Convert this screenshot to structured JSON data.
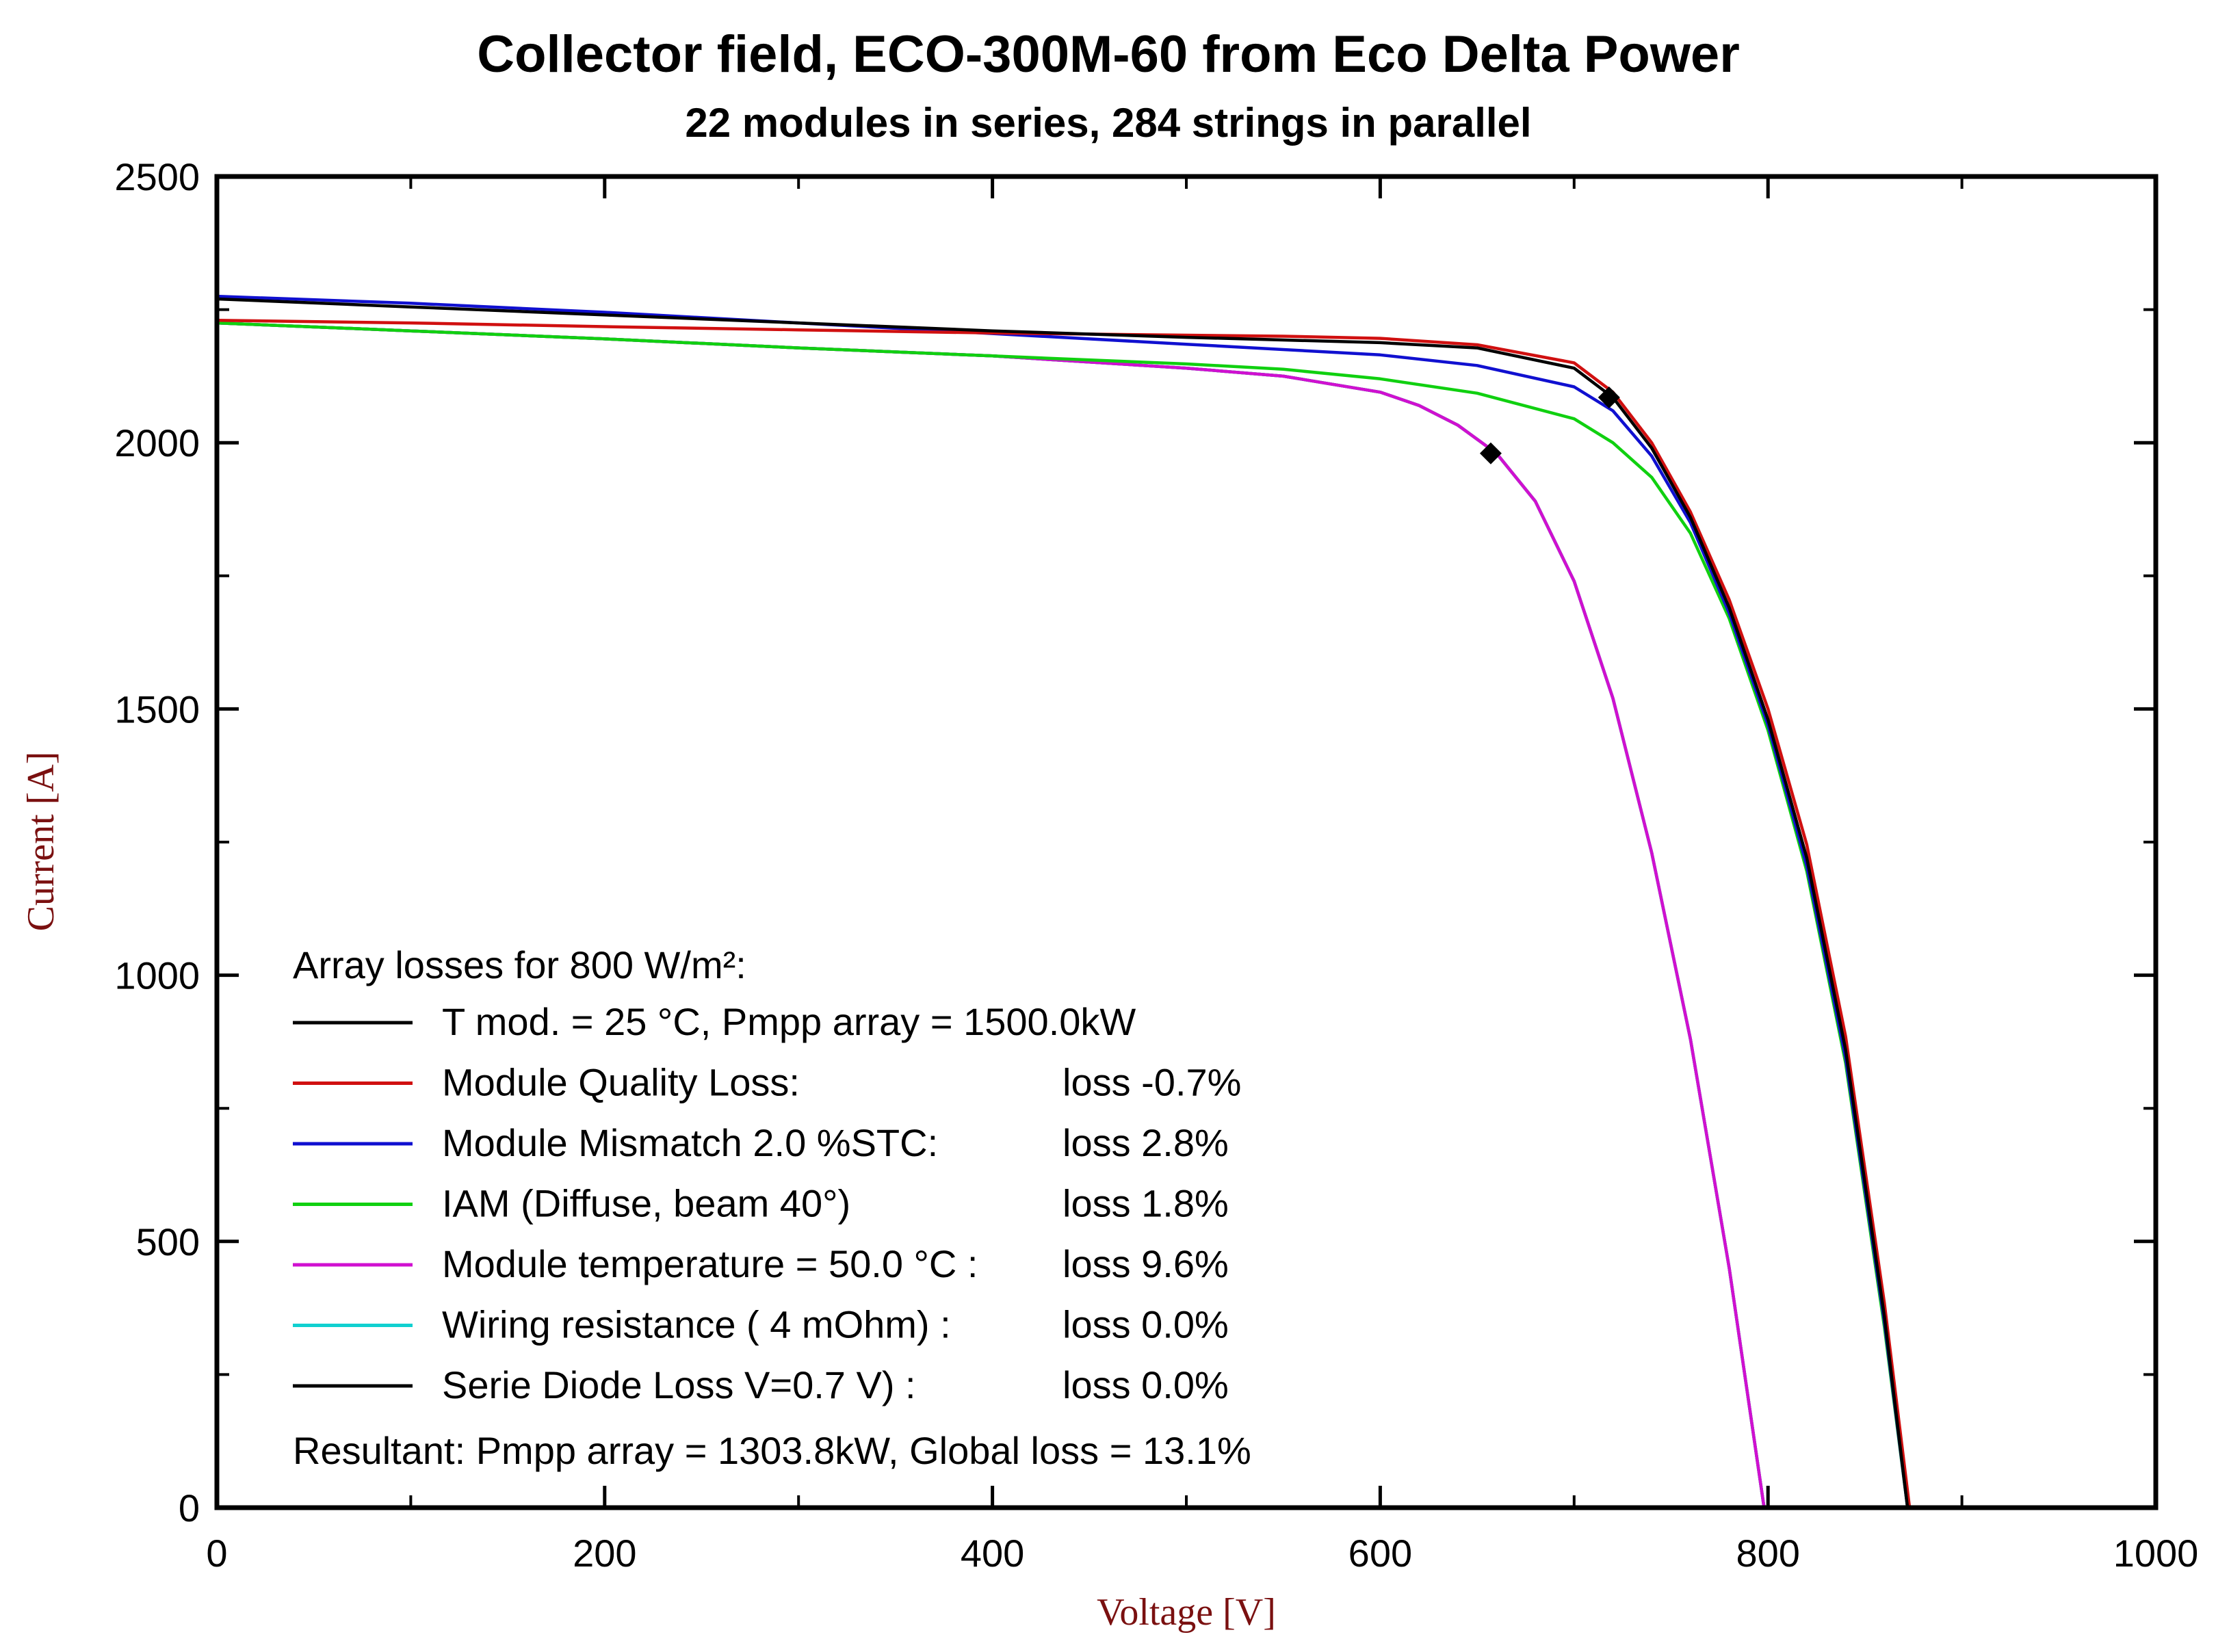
{
  "chart_data": {
    "type": "line",
    "title": "Collector field, ECO-300M-60 from Eco Delta Power",
    "subtitle": "22 modules in series, 284 strings in parallel",
    "xlabel": "Voltage [V]",
    "ylabel": "Current [A]",
    "xlim": [
      0,
      1000
    ],
    "ylim": [
      0,
      2500
    ],
    "xticks": [
      "0",
      "200",
      "400",
      "600",
      "800",
      "1000"
    ],
    "yticks": [
      "0",
      "500",
      "1000",
      "1500",
      "2000",
      "2500"
    ],
    "grid": false,
    "legend": {
      "title": "Array losses for  800 W/m²:",
      "placement": "bottom-left",
      "entries": [
        {
          "label": "T mod. = 25 °C,   Pmpp array = 1500.0kW",
          "loss": "",
          "color": "#000000"
        },
        {
          "label": "Module Quality Loss:",
          "loss": "loss -0.7%",
          "color": "#d01010"
        },
        {
          "label": "Module Mismatch 2.0 %STC:",
          "loss": "loss 2.8%",
          "color": "#1010d0"
        },
        {
          "label": "IAM (Diffuse, beam 40°)",
          "loss": "loss 1.8%",
          "color": "#10d010"
        },
        {
          "label": "Module temperature = 50.0 °C :",
          "loss": "loss 9.6%",
          "color": "#d010d0"
        },
        {
          "label": "Wiring resistance  (   4 mOhm) :",
          "loss": "loss 0.0%",
          "color": "#10d0d0"
        },
        {
          "label": "Serie Diode Loss V=0.7 V) :",
          "loss": "loss 0.0%",
          "color": "#000000"
        }
      ],
      "resultant": "Resultant: Pmpp array = 1303.8kW, Global loss = 13.1%"
    },
    "series": [
      {
        "name": "T mod. = 25 °C",
        "color": "#000000",
        "x": [
          0,
          100,
          200,
          300,
          400,
          500,
          550,
          600,
          650,
          700,
          720,
          740,
          760,
          780,
          800,
          820,
          840,
          860,
          872
        ],
        "y": [
          2270,
          2255,
          2240,
          2225,
          2210,
          2198,
          2193,
          2188,
          2178,
          2140,
          2085,
          1990,
          1860,
          1690,
          1480,
          1220,
          860,
          360,
          0
        ]
      },
      {
        "name": "Module Quality Loss",
        "color": "#d01010",
        "x": [
          0,
          100,
          200,
          300,
          400,
          500,
          550,
          600,
          650,
          700,
          720,
          740,
          760,
          780,
          800,
          820,
          840,
          860,
          873
        ],
        "y": [
          2230,
          2225,
          2218,
          2212,
          2206,
          2202,
          2200,
          2196,
          2184,
          2150,
          2095,
          2000,
          1870,
          1705,
          1500,
          1245,
          885,
          385,
          0
        ]
      },
      {
        "name": "Module Mismatch 2.0 %STC",
        "color": "#1010d0",
        "x": [
          0,
          100,
          200,
          300,
          400,
          500,
          550,
          600,
          650,
          700,
          720,
          740,
          760,
          780,
          800,
          820,
          840,
          860,
          872
        ],
        "y": [
          2275,
          2262,
          2245,
          2225,
          2205,
          2185,
          2175,
          2165,
          2145,
          2105,
          2060,
          1975,
          1850,
          1680,
          1470,
          1205,
          845,
          350,
          0
        ]
      },
      {
        "name": "IAM (Diffuse, beam 40°)",
        "color": "#10d010",
        "x": [
          0,
          100,
          200,
          300,
          400,
          500,
          550,
          600,
          650,
          700,
          720,
          740,
          760,
          780,
          800,
          820,
          840,
          860,
          872
        ],
        "y": [
          2225,
          2210,
          2195,
          2178,
          2163,
          2148,
          2138,
          2120,
          2093,
          2045,
          2000,
          1935,
          1830,
          1670,
          1460,
          1195,
          835,
          340,
          0
        ]
      },
      {
        "name": "Module temperature = 50.0 °C",
        "color": "#d010d0",
        "x": [
          0,
          100,
          200,
          300,
          400,
          500,
          550,
          600,
          620,
          640,
          660,
          680,
          700,
          720,
          740,
          760,
          780,
          798
        ],
        "y": [
          2225,
          2210,
          2195,
          2178,
          2163,
          2140,
          2125,
          2095,
          2070,
          2033,
          1980,
          1890,
          1740,
          1520,
          1230,
          880,
          450,
          0
        ]
      },
      {
        "name": "Wiring resistance",
        "color": "#10d0d0",
        "x": [
          0,
          100,
          200,
          300,
          400,
          500,
          550,
          600,
          620,
          640,
          660,
          680,
          700,
          720,
          740,
          760,
          780,
          798
        ],
        "y": [
          2225,
          2210,
          2195,
          2178,
          2163,
          2140,
          2125,
          2095,
          2070,
          2033,
          1980,
          1890,
          1740,
          1520,
          1230,
          880,
          450,
          0
        ]
      },
      {
        "name": "Serie Diode Loss",
        "color": "#000000",
        "x": [
          0,
          100,
          200,
          300,
          400,
          500,
          550,
          600,
          620,
          640,
          660,
          680,
          700,
          720,
          740,
          760,
          780,
          798
        ],
        "y": [
          2225,
          2210,
          2195,
          2178,
          2163,
          2140,
          2125,
          2095,
          2070,
          2033,
          1980,
          1890,
          1740,
          1520,
          1230,
          880,
          450,
          0
        ]
      }
    ],
    "mpp_points": [
      {
        "x": 657,
        "y": 1980
      },
      {
        "x": 718,
        "y": 2085
      }
    ]
  }
}
